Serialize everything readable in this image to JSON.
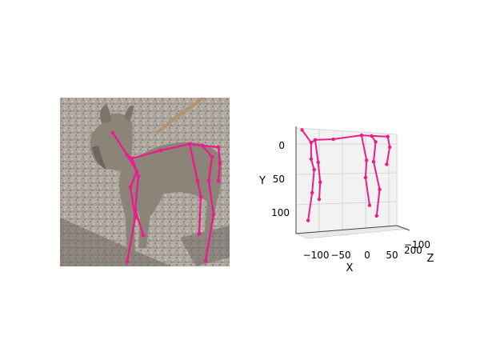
{
  "photo": {
    "subject_icon": "dog-photo",
    "skeleton_color": "#e91e8c"
  },
  "chart_data": {
    "type": "scatter",
    "projection": "3d",
    "skeleton_color": "#e91e8c",
    "xlabel": "X",
    "ylabel": "Y",
    "zlabel": "Z",
    "x_ticks": [
      "−100",
      "−50",
      "0",
      "50"
    ],
    "y_ticks": [
      "0",
      "50",
      "100"
    ],
    "z_ticks": [
      "−100",
      "200"
    ],
    "xlim": [
      -130,
      70
    ],
    "ylim": [
      -15,
      140
    ],
    "grid": true,
    "joints": [
      {
        "x": -118,
        "y": -12
      },
      {
        "x": -100,
        "y": 7
      },
      {
        "x": -92,
        "y": 3
      },
      {
        "x": -56,
        "y": 2
      },
      {
        "x": 0,
        "y": -4
      },
      {
        "x": 20,
        "y": -3
      },
      {
        "x": 52,
        "y": -2
      },
      {
        "x": 56,
        "y": 14
      },
      {
        "x": 50,
        "y": 40
      },
      {
        "x": -100,
        "y": 32
      },
      {
        "x": -94,
        "y": 48
      },
      {
        "x": -98,
        "y": 83
      },
      {
        "x": -106,
        "y": 125
      },
      {
        "x": -86,
        "y": 37
      },
      {
        "x": -82,
        "y": 67
      },
      {
        "x": -84,
        "y": 93
      },
      {
        "x": 10,
        "y": 34
      },
      {
        "x": 8,
        "y": 60
      },
      {
        "x": 16,
        "y": 102
      },
      {
        "x": 28,
        "y": 6
      },
      {
        "x": 24,
        "y": 36
      },
      {
        "x": 36,
        "y": 78
      },
      {
        "x": 30,
        "y": 118
      }
    ],
    "bones": [
      [
        0,
        1
      ],
      [
        1,
        2
      ],
      [
        2,
        3
      ],
      [
        3,
        4
      ],
      [
        4,
        5
      ],
      [
        5,
        6
      ],
      [
        6,
        7
      ],
      [
        7,
        8
      ],
      [
        1,
        9
      ],
      [
        9,
        10
      ],
      [
        10,
        11
      ],
      [
        11,
        12
      ],
      [
        2,
        13
      ],
      [
        13,
        14
      ],
      [
        14,
        15
      ],
      [
        4,
        16
      ],
      [
        16,
        17
      ],
      [
        17,
        18
      ],
      [
        5,
        19
      ],
      [
        19,
        20
      ],
      [
        20,
        21
      ],
      [
        21,
        22
      ]
    ]
  }
}
